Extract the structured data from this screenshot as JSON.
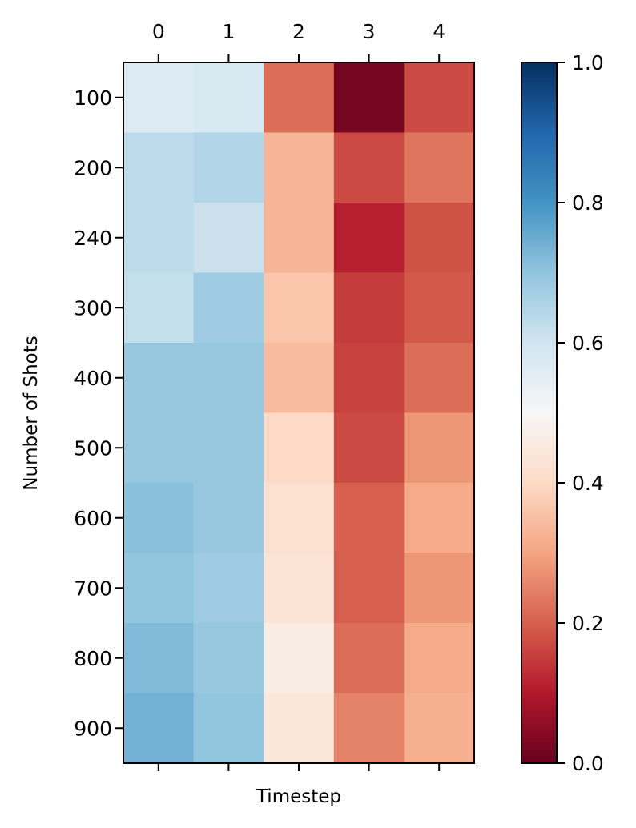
{
  "chart_data": {
    "type": "heatmap",
    "title": "",
    "xlabel": "Timestep",
    "ylabel": "Number of Shots",
    "x_categories": [
      "0",
      "1",
      "2",
      "3",
      "4"
    ],
    "y_categories": [
      "100",
      "200",
      "240",
      "300",
      "400",
      "500",
      "600",
      "700",
      "800",
      "900"
    ],
    "values": [
      [
        0.57,
        0.58,
        0.22,
        0.02,
        0.17
      ],
      [
        0.63,
        0.65,
        0.33,
        0.17,
        0.23
      ],
      [
        0.63,
        0.61,
        0.33,
        0.11,
        0.18
      ],
      [
        0.62,
        0.68,
        0.36,
        0.15,
        0.19
      ],
      [
        0.69,
        0.69,
        0.34,
        0.16,
        0.22
      ],
      [
        0.69,
        0.69,
        0.4,
        0.17,
        0.28
      ],
      [
        0.71,
        0.69,
        0.42,
        0.2,
        0.31
      ],
      [
        0.7,
        0.68,
        0.43,
        0.2,
        0.28
      ],
      [
        0.72,
        0.69,
        0.46,
        0.22,
        0.31
      ],
      [
        0.74,
        0.7,
        0.44,
        0.25,
        0.32
      ]
    ],
    "x_axis_position": "top",
    "colormap": "RdBu",
    "colorbar": {
      "range": [
        0.0,
        1.0
      ],
      "ticks": [
        "0.0",
        "0.2",
        "0.4",
        "0.6",
        "0.8",
        "1.0"
      ]
    },
    "grid": false
  }
}
